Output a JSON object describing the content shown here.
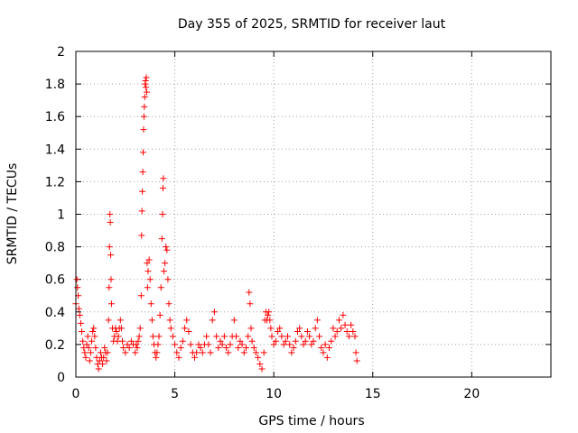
{
  "chart_data": {
    "type": "scatter",
    "title": "Day 355 of 2025, SRMTID for receiver laut",
    "xlabel": "GPS time / hours",
    "ylabel": "SRMTID / TECUs",
    "xlim": [
      0,
      24
    ],
    "ylim": [
      0,
      2
    ],
    "xticks": [
      0,
      5,
      10,
      15,
      20
    ],
    "xtick_labels": [
      "0",
      "5",
      "10",
      "15",
      "20"
    ],
    "yticks": [
      0,
      0.2,
      0.4,
      0.6,
      0.8,
      1,
      1.2,
      1.4,
      1.6,
      1.8,
      2
    ],
    "ytick_labels": [
      "0",
      "0.2",
      "0.4",
      "0.6",
      "0.8",
      "1",
      "1.2",
      "1.4",
      "1.6",
      "1.8",
      "2"
    ],
    "grid": true,
    "marker": "+",
    "color": "#ff0000",
    "series": [
      {
        "name": "SRMTID",
        "points": [
          [
            0.0,
            0.45
          ],
          [
            0.05,
            0.6
          ],
          [
            0.08,
            0.55
          ],
          [
            0.12,
            0.5
          ],
          [
            0.15,
            0.42
          ],
          [
            0.2,
            0.38
          ],
          [
            0.25,
            0.33
          ],
          [
            0.3,
            0.28
          ],
          [
            0.35,
            0.22
          ],
          [
            0.4,
            0.18
          ],
          [
            0.45,
            0.15
          ],
          [
            0.5,
            0.12
          ],
          [
            0.55,
            0.2
          ],
          [
            0.6,
            0.25
          ],
          [
            0.65,
            0.18
          ],
          [
            0.7,
            0.1
          ],
          [
            0.75,
            0.15
          ],
          [
            0.8,
            0.22
          ],
          [
            0.85,
            0.28
          ],
          [
            0.9,
            0.3
          ],
          [
            0.95,
            0.25
          ],
          [
            1.0,
            0.18
          ],
          [
            1.05,
            0.12
          ],
          [
            1.1,
            0.08
          ],
          [
            1.15,
            0.05
          ],
          [
            1.2,
            0.1
          ],
          [
            1.25,
            0.15
          ],
          [
            1.3,
            0.12
          ],
          [
            1.35,
            0.08
          ],
          [
            1.4,
            0.12
          ],
          [
            1.45,
            0.18
          ],
          [
            1.5,
            0.15
          ],
          [
            1.55,
            0.1
          ],
          [
            1.6,
            0.15
          ],
          [
            1.65,
            0.35
          ],
          [
            1.68,
            0.55
          ],
          [
            1.7,
            0.8
          ],
          [
            1.72,
            1.0
          ],
          [
            1.74,
            0.95
          ],
          [
            1.76,
            0.75
          ],
          [
            1.78,
            0.6
          ],
          [
            1.8,
            0.45
          ],
          [
            1.85,
            0.3
          ],
          [
            1.9,
            0.22
          ],
          [
            1.95,
            0.25
          ],
          [
            2.0,
            0.3
          ],
          [
            2.05,
            0.28
          ],
          [
            2.1,
            0.22
          ],
          [
            2.15,
            0.25
          ],
          [
            2.2,
            0.3
          ],
          [
            2.25,
            0.35
          ],
          [
            2.3,
            0.3
          ],
          [
            2.35,
            0.22
          ],
          [
            2.4,
            0.18
          ],
          [
            2.5,
            0.15
          ],
          [
            2.6,
            0.2
          ],
          [
            2.7,
            0.18
          ],
          [
            2.8,
            0.22
          ],
          [
            2.9,
            0.2
          ],
          [
            3.0,
            0.15
          ],
          [
            3.05,
            0.2
          ],
          [
            3.1,
            0.18
          ],
          [
            3.15,
            0.22
          ],
          [
            3.2,
            0.25
          ],
          [
            3.25,
            0.3
          ],
          [
            3.3,
            0.5
          ],
          [
            3.32,
            0.87
          ],
          [
            3.34,
            1.02
          ],
          [
            3.36,
            1.14
          ],
          [
            3.38,
            1.26
          ],
          [
            3.4,
            1.38
          ],
          [
            3.42,
            1.52
          ],
          [
            3.44,
            1.6
          ],
          [
            3.46,
            1.66
          ],
          [
            3.48,
            1.72
          ],
          [
            3.5,
            1.8
          ],
          [
            3.52,
            1.82
          ],
          [
            3.54,
            1.78
          ],
          [
            3.56,
            1.84
          ],
          [
            3.58,
            1.75
          ],
          [
            3.6,
            0.7
          ],
          [
            3.62,
            0.55
          ],
          [
            3.65,
            0.65
          ],
          [
            3.7,
            0.72
          ],
          [
            3.75,
            0.6
          ],
          [
            3.8,
            0.45
          ],
          [
            3.85,
            0.35
          ],
          [
            3.9,
            0.25
          ],
          [
            3.95,
            0.2
          ],
          [
            4.0,
            0.15
          ],
          [
            4.05,
            0.12
          ],
          [
            4.1,
            0.15
          ],
          [
            4.15,
            0.2
          ],
          [
            4.2,
            0.25
          ],
          [
            4.25,
            0.38
          ],
          [
            4.3,
            0.55
          ],
          [
            4.35,
            0.85
          ],
          [
            4.38,
            1.0
          ],
          [
            4.4,
            1.16
          ],
          [
            4.42,
            1.22
          ],
          [
            4.45,
            0.65
          ],
          [
            4.5,
            0.7
          ],
          [
            4.55,
            0.8
          ],
          [
            4.6,
            0.78
          ],
          [
            4.65,
            0.6
          ],
          [
            4.7,
            0.45
          ],
          [
            4.75,
            0.35
          ],
          [
            4.8,
            0.3
          ],
          [
            4.9,
            0.25
          ],
          [
            5.0,
            0.2
          ],
          [
            5.1,
            0.15
          ],
          [
            5.2,
            0.12
          ],
          [
            5.3,
            0.18
          ],
          [
            5.4,
            0.22
          ],
          [
            5.5,
            0.3
          ],
          [
            5.6,
            0.35
          ],
          [
            5.7,
            0.28
          ],
          [
            5.8,
            0.2
          ],
          [
            5.9,
            0.15
          ],
          [
            6.0,
            0.12
          ],
          [
            6.1,
            0.15
          ],
          [
            6.2,
            0.2
          ],
          [
            6.3,
            0.18
          ],
          [
            6.4,
            0.15
          ],
          [
            6.5,
            0.2
          ],
          [
            6.6,
            0.25
          ],
          [
            6.7,
            0.2
          ],
          [
            6.8,
            0.15
          ],
          [
            6.9,
            0.35
          ],
          [
            7.0,
            0.4
          ],
          [
            7.1,
            0.25
          ],
          [
            7.2,
            0.18
          ],
          [
            7.3,
            0.22
          ],
          [
            7.4,
            0.2
          ],
          [
            7.5,
            0.25
          ],
          [
            7.6,
            0.18
          ],
          [
            7.7,
            0.15
          ],
          [
            7.8,
            0.2
          ],
          [
            7.9,
            0.25
          ],
          [
            8.0,
            0.35
          ],
          [
            8.1,
            0.25
          ],
          [
            8.2,
            0.18
          ],
          [
            8.3,
            0.22
          ],
          [
            8.4,
            0.2
          ],
          [
            8.5,
            0.15
          ],
          [
            8.6,
            0.18
          ],
          [
            8.7,
            0.25
          ],
          [
            8.75,
            0.52
          ],
          [
            8.8,
            0.45
          ],
          [
            8.85,
            0.3
          ],
          [
            8.9,
            0.22
          ],
          [
            9.0,
            0.18
          ],
          [
            9.1,
            0.15
          ],
          [
            9.2,
            0.12
          ],
          [
            9.3,
            0.08
          ],
          [
            9.4,
            0.05
          ],
          [
            9.5,
            0.15
          ],
          [
            9.55,
            0.35
          ],
          [
            9.6,
            0.4
          ],
          [
            9.65,
            0.35
          ],
          [
            9.7,
            0.38
          ],
          [
            9.75,
            0.4
          ],
          [
            9.8,
            0.35
          ],
          [
            9.85,
            0.3
          ],
          [
            9.9,
            0.25
          ],
          [
            10.0,
            0.2
          ],
          [
            10.1,
            0.22
          ],
          [
            10.2,
            0.28
          ],
          [
            10.3,
            0.3
          ],
          [
            10.4,
            0.25
          ],
          [
            10.5,
            0.2
          ],
          [
            10.6,
            0.22
          ],
          [
            10.7,
            0.25
          ],
          [
            10.8,
            0.2
          ],
          [
            10.9,
            0.15
          ],
          [
            11.0,
            0.18
          ],
          [
            11.1,
            0.22
          ],
          [
            11.2,
            0.28
          ],
          [
            11.3,
            0.3
          ],
          [
            11.4,
            0.25
          ],
          [
            11.5,
            0.2
          ],
          [
            11.6,
            0.22
          ],
          [
            11.7,
            0.28
          ],
          [
            11.8,
            0.25
          ],
          [
            11.9,
            0.2
          ],
          [
            12.0,
            0.22
          ],
          [
            12.1,
            0.3
          ],
          [
            12.2,
            0.35
          ],
          [
            12.3,
            0.25
          ],
          [
            12.4,
            0.18
          ],
          [
            12.5,
            0.15
          ],
          [
            12.6,
            0.2
          ],
          [
            12.7,
            0.12
          ],
          [
            12.8,
            0.18
          ],
          [
            12.9,
            0.22
          ],
          [
            13.0,
            0.3
          ],
          [
            13.1,
            0.25
          ],
          [
            13.2,
            0.28
          ],
          [
            13.3,
            0.35
          ],
          [
            13.4,
            0.3
          ],
          [
            13.5,
            0.38
          ],
          [
            13.6,
            0.32
          ],
          [
            13.7,
            0.28
          ],
          [
            13.8,
            0.25
          ],
          [
            13.9,
            0.32
          ],
          [
            14.0,
            0.28
          ],
          [
            14.1,
            0.25
          ],
          [
            14.15,
            0.15
          ],
          [
            14.2,
            0.1
          ]
        ]
      }
    ]
  }
}
